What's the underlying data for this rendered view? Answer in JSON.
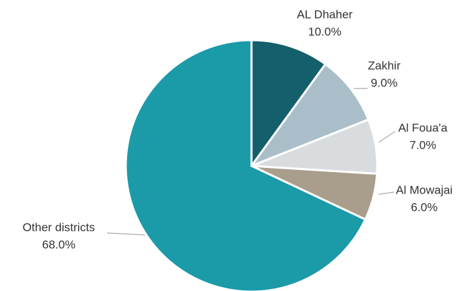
{
  "chart_data": {
    "type": "pie",
    "categories": [
      "AL Dhaher",
      "Zakhir",
      "Al Foua'a",
      "Al Mowajai",
      "Other districts"
    ],
    "values": [
      10,
      9,
      7,
      6,
      68
    ],
    "value_labels": [
      "10.0%",
      "9.0%",
      "7.0%",
      "6.0%",
      "68.0%"
    ],
    "colors": [
      "#135f6b",
      "#a9bec9",
      "#d9dcdf",
      "#a89e8b",
      "#1b9aa8"
    ]
  }
}
